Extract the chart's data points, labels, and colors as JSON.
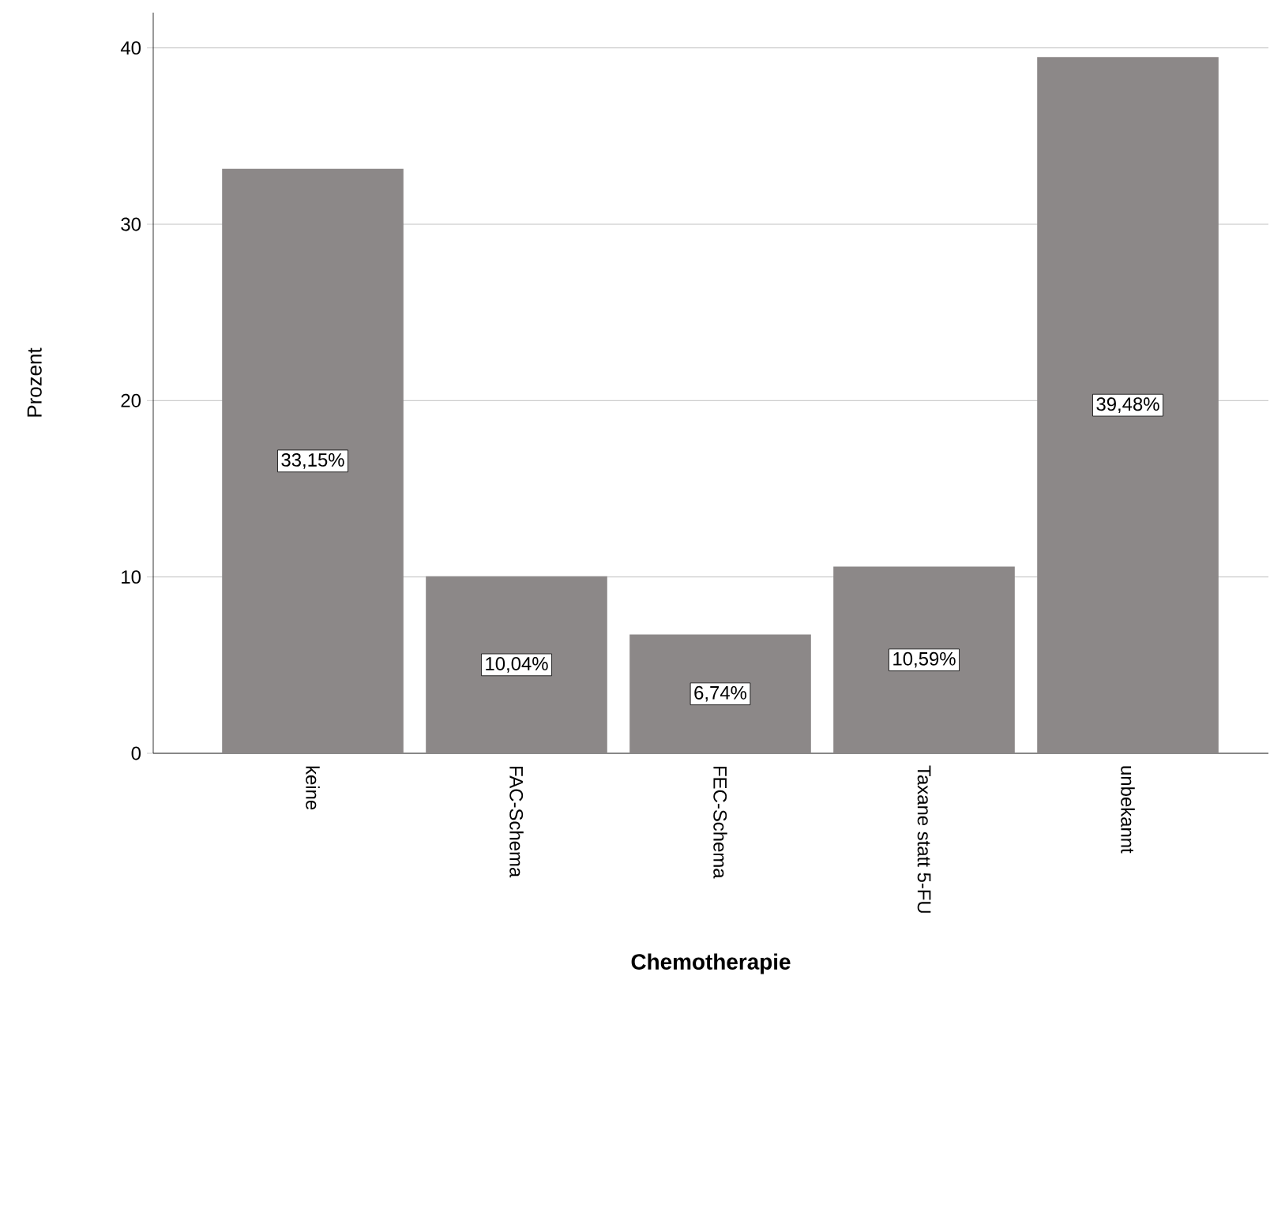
{
  "chart_data": {
    "type": "bar",
    "xlabel": "Chemotherapie",
    "ylabel": "Prozent",
    "categories": [
      "keine",
      "FAC-Schema",
      "FEC-Schema",
      "Taxane statt 5-FU",
      "unbekannt"
    ],
    "values": [
      33.15,
      10.04,
      6.74,
      10.59,
      39.48
    ],
    "value_labels": [
      "33,15%",
      "10,04%",
      "6,74%",
      "10,59%",
      "39,48%"
    ],
    "color": "#8c8888",
    "ylim": [
      0,
      42
    ],
    "yticks": [
      0,
      10,
      20,
      30,
      40
    ],
    "grid": "y"
  }
}
